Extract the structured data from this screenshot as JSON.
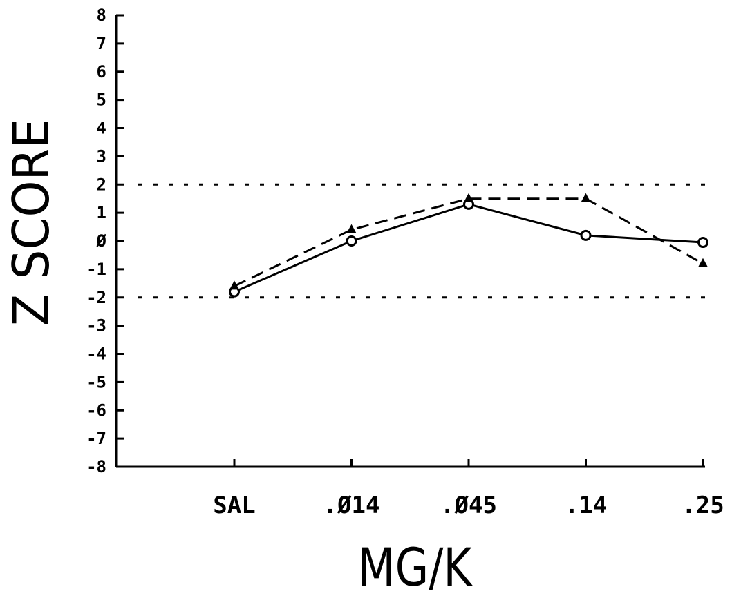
{
  "chart_data": {
    "type": "line",
    "xlabel": "MG/K",
    "ylabel": "Z SCORE",
    "categories": [
      "SAL",
      ".Ø14",
      ".Ø45",
      ".14",
      ".25"
    ],
    "ylim": [
      -8,
      8
    ],
    "yticks": [
      "8",
      "7",
      "6",
      "5",
      "4",
      "3",
      "2",
      "1",
      "Ø",
      "-1",
      "-2",
      "-3",
      "-4",
      "-5",
      "-6",
      "-7",
      "-8"
    ],
    "reference_lines": [
      2,
      -2
    ],
    "grid": false,
    "series": [
      {
        "marker": "circle",
        "style": "solid",
        "values": [
          -1.8,
          0.0,
          1.3,
          0.2,
          -0.05
        ]
      },
      {
        "marker": "triangle",
        "style": "dashed",
        "values": [
          -1.6,
          0.4,
          1.5,
          1.5,
          -0.8
        ]
      }
    ]
  }
}
